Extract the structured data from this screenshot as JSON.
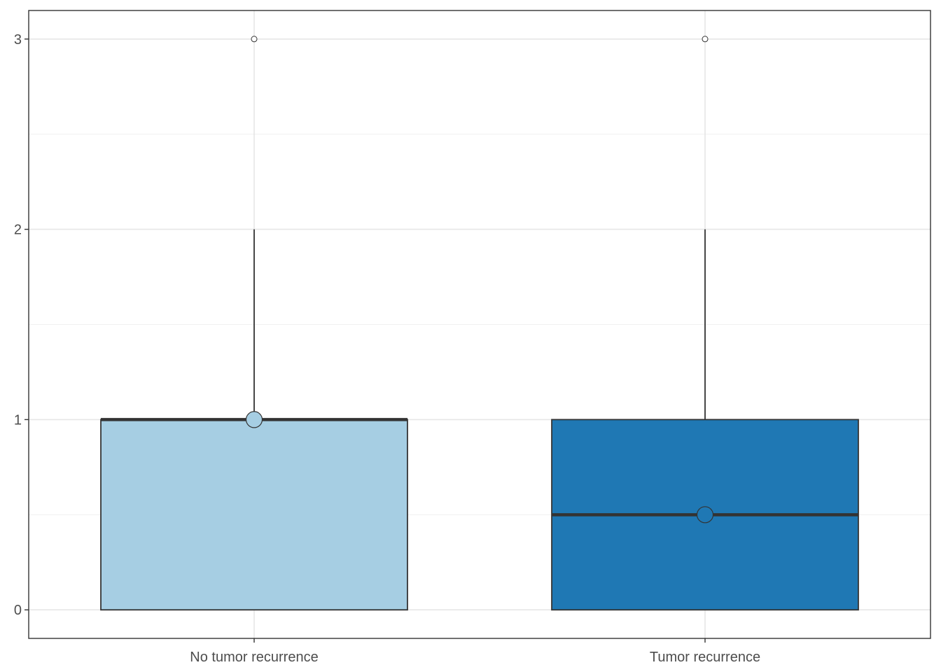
{
  "chart_data": {
    "type": "box",
    "categories": [
      "No tumor recurrence",
      "Tumor recurrence"
    ],
    "boxes": [
      {
        "category": "No tumor recurrence",
        "min": 0,
        "q1": 0,
        "median": 1,
        "q3": 1,
        "max": 2,
        "mean": 1,
        "outliers": [
          3
        ],
        "fill": "#a6cee3"
      },
      {
        "category": "Tumor recurrence",
        "min": 0,
        "q1": 0,
        "median": 0.5,
        "q3": 1,
        "max": 2,
        "mean": 0.5,
        "outliers": [
          3
        ],
        "fill": "#1f78b4"
      }
    ],
    "yticks": [
      0,
      1,
      2,
      3
    ],
    "ylim": [
      -0.15,
      3.15
    ],
    "title": "",
    "xlabel": "",
    "ylabel": "",
    "grid": true,
    "legend": "none"
  }
}
